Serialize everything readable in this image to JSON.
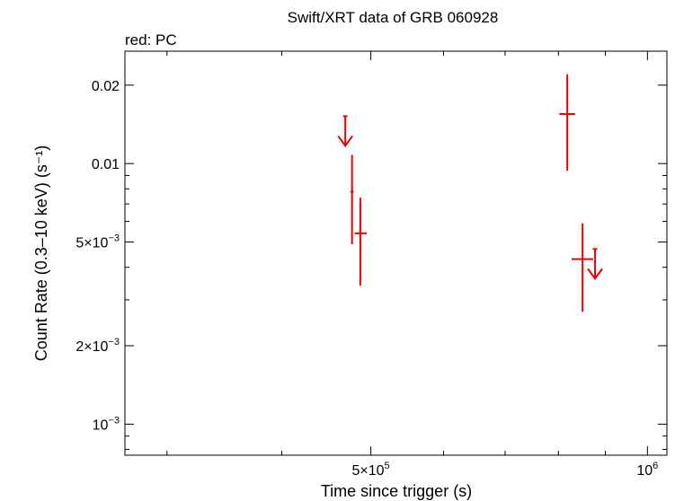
{
  "chart_data": {
    "type": "scatter",
    "title": "Swift/XRT data of GRB 060928",
    "subtitle": "red: PC",
    "xlabel": "Time since trigger (s)",
    "ylabel": "Count Rate (0.3–10 keV) (s⁻¹)",
    "x_scale": "log",
    "y_scale": "log",
    "xlim": [
      270000,
      1050000
    ],
    "ylim": [
      0.00076,
      0.027
    ],
    "grid": false,
    "x_ticks": [
      {
        "value": 500000,
        "mant": "5×10",
        "exp": "5"
      },
      {
        "value": 1000000,
        "mant": "10",
        "exp": "6"
      }
    ],
    "y_ticks": [
      {
        "value": 0.02,
        "mant": "0.02",
        "exp": ""
      },
      {
        "value": 0.01,
        "mant": "0.01",
        "exp": ""
      },
      {
        "value": 0.005,
        "mant": "5×10",
        "exp": "−3"
      },
      {
        "value": 0.002,
        "mant": "2×10",
        "exp": "−3"
      },
      {
        "value": 0.001,
        "mant": "10",
        "exp": "−3"
      }
    ],
    "color": "#ee0000",
    "series": [
      {
        "points": [
          {
            "x": 477000,
            "x_lo": 475000,
            "x_hi": 479000,
            "y": 0.0078,
            "y_lo": 0.0049,
            "y_hi": 0.0108
          },
          {
            "x": 487000,
            "x_lo": 480000,
            "x_hi": 495000,
            "y": 0.0054,
            "y_lo": 0.0034,
            "y_hi": 0.0074
          },
          {
            "x": 818000,
            "x_lo": 802000,
            "x_hi": 834000,
            "y": 0.0155,
            "y_lo": 0.0094,
            "y_hi": 0.022
          },
          {
            "x": 850000,
            "x_lo": 827000,
            "x_hi": 873000,
            "y": 0.0043,
            "y_lo": 0.0027,
            "y_hi": 0.0059
          }
        ],
        "upper_limits": [
          {
            "x": 469000,
            "y": 0.0152,
            "width": 5000
          },
          {
            "x": 877000,
            "y": 0.0047,
            "width": 10000
          }
        ]
      }
    ]
  }
}
